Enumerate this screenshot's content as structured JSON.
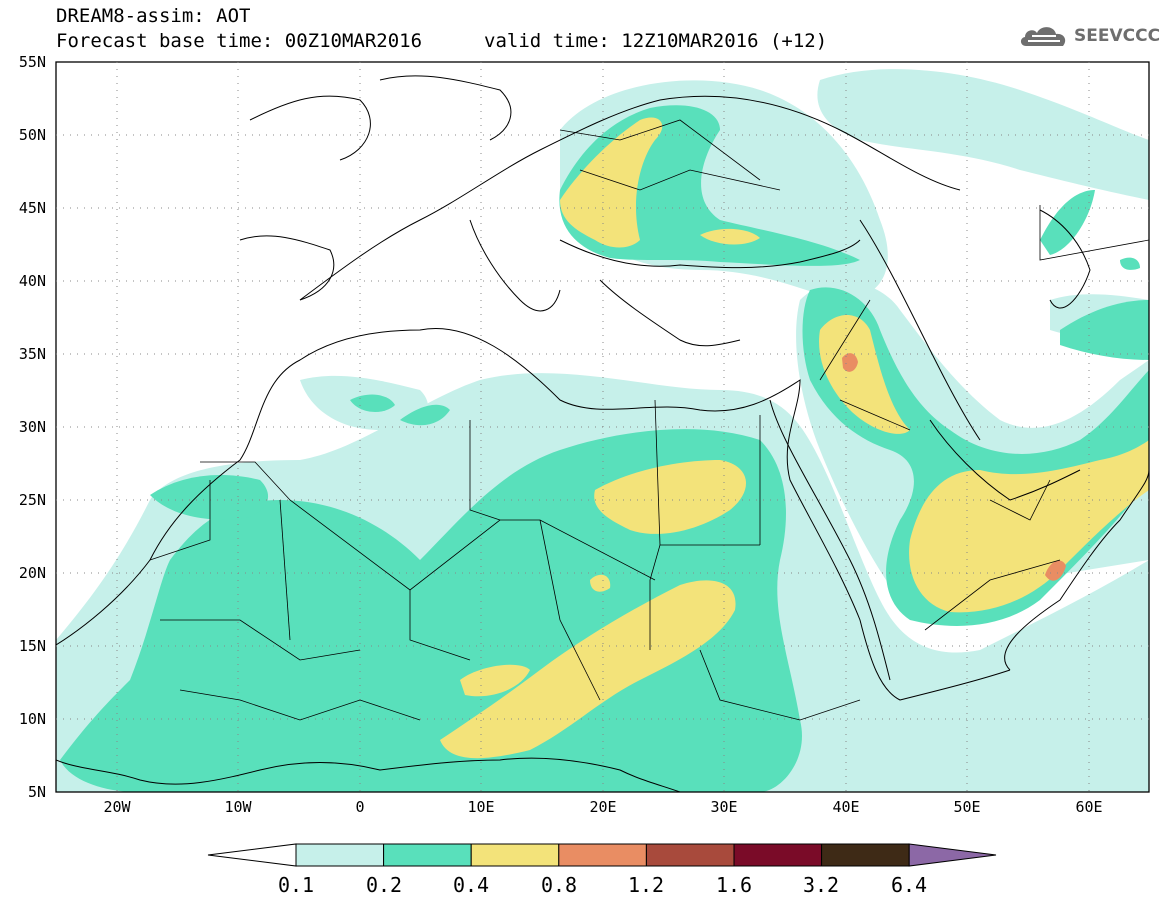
{
  "header": {
    "title": "DREAM8-assim: AOT",
    "base_time": "Forecast base time: 00Z10MAR2016",
    "valid_time": "valid time: 12Z10MAR2016 (+12)"
  },
  "logo": {
    "text": "SEEVCCC",
    "icon": "cloud-icon"
  },
  "map": {
    "lat_labels": [
      "55N",
      "50N",
      "45N",
      "40N",
      "35N",
      "30N",
      "25N",
      "20N",
      "15N",
      "10N",
      "5N"
    ],
    "lon_labels": [
      "20W",
      "10W",
      "0",
      "10E",
      "20E",
      "30E",
      "40E",
      "50E",
      "60E"
    ],
    "lon_range": [
      -25,
      65
    ],
    "lat_range": [
      5,
      55
    ],
    "grid": "dotted"
  },
  "colorbar": {
    "labels": [
      "0.1",
      "0.2",
      "0.4",
      "0.8",
      "1.2",
      "1.6",
      "3.2",
      "6.4"
    ],
    "colors": [
      "#ffffff",
      "#c6f0ea",
      "#59e0bb",
      "#f3e37a",
      "#e98d63",
      "#a84a3c",
      "#7a0b28",
      "#3e2a16",
      "#8c68a6"
    ]
  },
  "colors": {
    "very_low": "#c6f0ea",
    "low": "#59e0bb",
    "moderate": "#f3e37a",
    "high": "#e98d63",
    "very_high": "#a84a3c",
    "extreme": "#7a0b28",
    "max": "#3e2a16",
    "above": "#8c68a6"
  }
}
